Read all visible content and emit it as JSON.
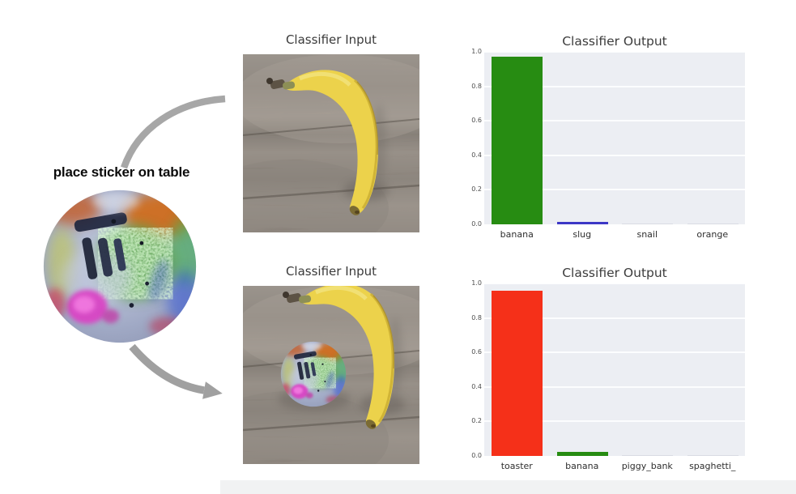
{
  "annotation": {
    "text": "place sticker on table"
  },
  "panels": {
    "input_top": {
      "title": "Classifier Input"
    },
    "input_bottom": {
      "title": "Classifier Input"
    }
  },
  "colors": {
    "banana_bar_green": "#278c12",
    "toaster_bar_red": "#f53019",
    "slug_bar_blue": "#3d38c6",
    "near_zero_bar_gray": "#d9dce3",
    "plot_background": "#eceef3",
    "arrow_gray": "#a7a7a7",
    "title_text": "#3c3c3c"
  },
  "chart_data": [
    {
      "type": "bar",
      "title": "Classifier Output",
      "categories": [
        "banana",
        "slug",
        "snail",
        "orange"
      ],
      "values": [
        0.97,
        0.016,
        0.006,
        0.006
      ],
      "bar_colors": [
        "#278c12",
        "#3d38c6",
        "#d9dce3",
        "#d9dce3"
      ],
      "xlabel": "",
      "ylabel": "",
      "ylim": [
        0,
        1
      ],
      "yticks": [
        "0.0",
        "0.2",
        "0.4",
        "0.6",
        "0.8",
        "1.0"
      ],
      "grid": true,
      "legend": "none",
      "plot_bg": "#eceef3"
    },
    {
      "type": "bar",
      "title": "Classifier Output",
      "categories": [
        "toaster",
        "banana",
        "piggy_bank",
        "spaghetti_"
      ],
      "values": [
        0.96,
        0.022,
        0.006,
        0.006
      ],
      "bar_colors": [
        "#f53019",
        "#278c12",
        "#d9dce3",
        "#d9dce3"
      ],
      "xlabel": "",
      "ylabel": "",
      "ylim": [
        0,
        1
      ],
      "yticks": [
        "0.0",
        "0.2",
        "0.4",
        "0.6",
        "0.8",
        "1.0"
      ],
      "grid": true,
      "legend": "none",
      "plot_bg": "#eceef3"
    }
  ]
}
